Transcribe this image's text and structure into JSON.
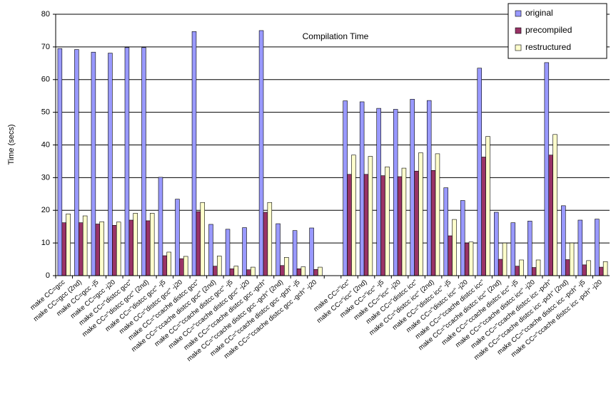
{
  "chart_data": {
    "type": "bar",
    "title": "Compilation Time",
    "y_label": "Time (secs)",
    "categories": [
      "make CC=gcc",
      "make CC=gcc (2nd)",
      "make CC=gcc -j5",
      "make CC=gcc -j20",
      "make CC=\"distcc gcc\"",
      "make CC=\"distcc gcc\" (2nd)",
      "make CC=\"distcc gcc\" -j5",
      "make CC=\"distcc gcc\" -j20",
      "make CC=\"ccache distcc gcc\"",
      "make CC=\"ccache distcc gcc\" (2nd)",
      "make CC=\"ccache distcc gcc\" -j5",
      "make CC=\"ccache distcc gcc\" -j20",
      "make CC=\"ccache distcc gcc -gch\"",
      "make CC=\"ccache distcc gcc -gch\" (2nd)",
      "make CC=\"ccache distcc gcc -gch\" -j5",
      "make CC=\"ccache distcc gcc -gch\" -j20",
      null,
      "make CC=\"icc\"",
      "make CC=\"icc\" (2nd)",
      "make CC=\"icc\" -j5",
      "make CC=\"icc\" -j20",
      "make CC=\"distcc icc\"",
      "make CC=\"distcc icc\" (2nd)",
      "make CC=\"distcc icc\" -j5",
      "make CC=\"distcc icc\" -j20",
      "make CC=\"ccache distcc icc\"",
      "make CC=\"ccache distcc icc\" (2nd)",
      "make CC=\"ccache distcc icc\" -j5",
      "make CC=\"ccache distcc icc\" -j20",
      "make CC=\"ccache distcc icc -pch\"",
      "make CC=\"ccache distcc icc -pch\" (2nd)",
      "make CC=\"ccache distcc icc -pch\" -j5",
      "make CC=\"ccache distcc icc -pch\" -j20"
    ],
    "series": [
      {
        "name": "original",
        "color": "#9999ff",
        "values": [
          69.5,
          69.2,
          68.4,
          68.1,
          69.8,
          69.8,
          30.1,
          23.4,
          74.7,
          15.7,
          14.2,
          14.7,
          75,
          15.9,
          13.8,
          14.6,
          null,
          53.5,
          53.2,
          51.2,
          50.9,
          54,
          53.6,
          26.9,
          23,
          63.5,
          19.4,
          16.2,
          16.7,
          65.2,
          21.4,
          17,
          17.3
        ]
      },
      {
        "name": "precompiled",
        "color": "#993366",
        "values": [
          16.2,
          16.2,
          15.8,
          15.4,
          17,
          16.8,
          6.1,
          5.2,
          19.6,
          2.9,
          2.1,
          1.8,
          19.4,
          3.1,
          2.1,
          1.9,
          null,
          31,
          31,
          30.6,
          30.3,
          32,
          32.2,
          12.2,
          10,
          36.3,
          5,
          2.9,
          2.5,
          36.9,
          4.9,
          3.3,
          2.6
        ]
      },
      {
        "name": "restructured",
        "color": "#ffffcc",
        "values": [
          18.9,
          18.3,
          16.5,
          16.4,
          19.1,
          19.1,
          7.2,
          5.9,
          22.4,
          6,
          2.9,
          2.6,
          22.4,
          5.6,
          2.7,
          2.6,
          null,
          36.9,
          36.5,
          33.3,
          32.9,
          37.6,
          37.3,
          17.2,
          10.3,
          42.6,
          10,
          4.8,
          4.8,
          43.2,
          10,
          4.6,
          4.3
        ]
      }
    ],
    "ylim": [
      0,
      80
    ],
    "yticks": [
      0,
      10,
      20,
      30,
      40,
      50,
      60,
      70,
      80
    ],
    "grid": true,
    "legend": "top-right"
  }
}
